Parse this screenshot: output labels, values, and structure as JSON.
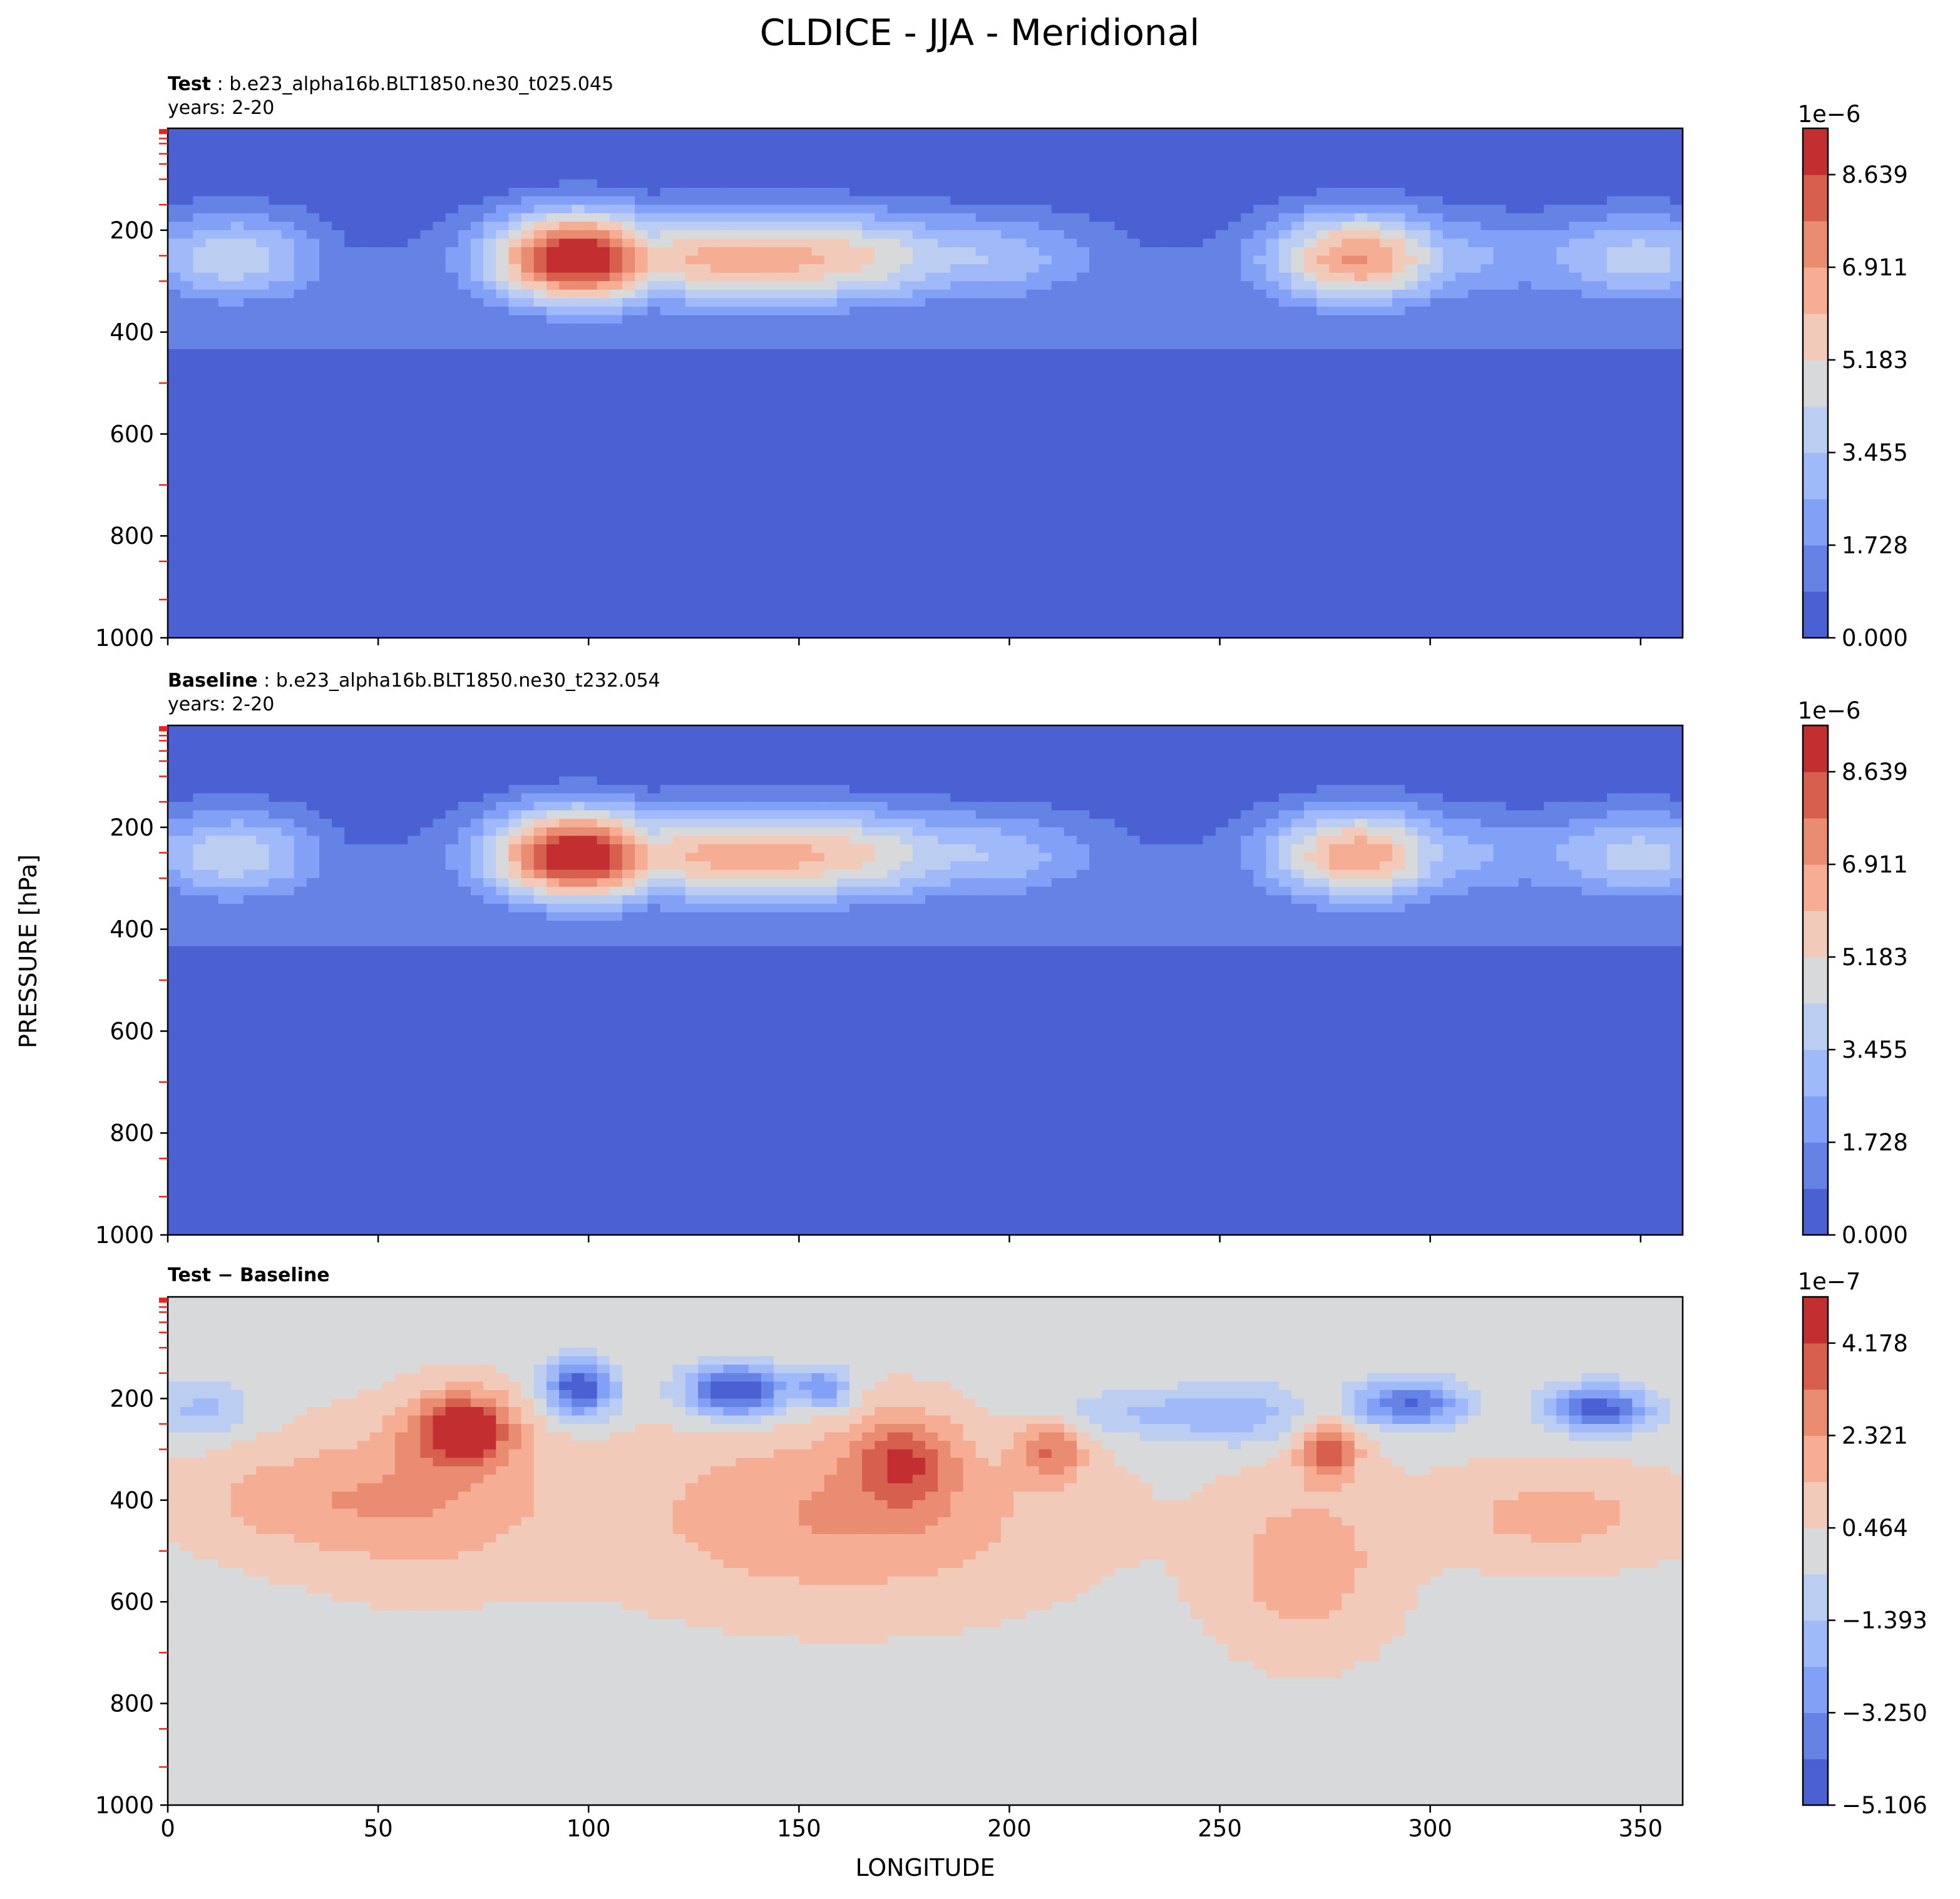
{
  "figure": {
    "title": "CLDICE - JJA - Meridional",
    "xlabel": "LONGITUDE",
    "ylabel": "PRESSURE [hPa]"
  },
  "colors": {
    "background": "#ffffff",
    "axis": "#000000",
    "tick_marker_red": "#e8211d"
  },
  "chart_data": [
    {
      "type": "heatmap",
      "name": "test",
      "title_bold": "Test",
      "title_rest": " : b.e23_alpha16b.BLT1850.ne30_t025.045",
      "years": "years: 2-20",
      "x": {
        "label": "",
        "range": [
          0,
          360
        ],
        "ticks": [
          0,
          50,
          100,
          150,
          200,
          250,
          300,
          350
        ],
        "tick_labels_visible": false
      },
      "y": {
        "label": "PRESSURE [hPa]",
        "range": [
          0,
          1000
        ],
        "inverted": true,
        "ticks": [
          200,
          400,
          600,
          800,
          1000
        ]
      },
      "colorbar": {
        "multiplier": "1e−6",
        "tick_labels": [
          "0.000",
          "1.728",
          "3.455",
          "5.183",
          "6.911",
          "8.639"
        ],
        "levels": 11,
        "colors": [
          "#4a60d3",
          "#6582e5",
          "#82a0f6",
          "#a0baf9",
          "#bccdf2",
          "#d8d9da",
          "#f2cab9",
          "#f5ae93",
          "#ea8c72",
          "#d6604d",
          "#c32e31"
        ]
      },
      "features": {
        "upper_band_pressure_hpa": [
          150,
          480
        ],
        "max_value_units": 9.3,
        "max_longitude_deg": 98,
        "max_pressure_hpa": 250,
        "secondary_max_longitude_deg": 283,
        "secondary_max_value_units": 6.5
      }
    },
    {
      "type": "heatmap",
      "name": "baseline",
      "title_bold": "Baseline",
      "title_rest": " : b.e23_alpha16b.BLT1850.ne30_t232.054",
      "years": "years: 2-20",
      "x": {
        "label": "",
        "range": [
          0,
          360
        ],
        "ticks": [
          0,
          50,
          100,
          150,
          200,
          250,
          300,
          350
        ],
        "tick_labels_visible": false
      },
      "y": {
        "label": "PRESSURE [hPa]",
        "range": [
          0,
          1000
        ],
        "inverted": true,
        "ticks": [
          200,
          400,
          600,
          800,
          1000
        ]
      },
      "colorbar": {
        "multiplier": "1e−6",
        "tick_labels": [
          "0.000",
          "1.728",
          "3.455",
          "5.183",
          "6.911",
          "8.639"
        ],
        "levels": 11,
        "colors": [
          "#4a60d3",
          "#6582e5",
          "#82a0f6",
          "#a0baf9",
          "#bccdf2",
          "#d8d9da",
          "#f2cab9",
          "#f5ae93",
          "#ea8c72",
          "#d6604d",
          "#c32e31"
        ]
      },
      "features": {
        "upper_band_pressure_hpa": [
          150,
          480
        ],
        "max_value_units": 9.3,
        "max_longitude_deg": 98,
        "max_pressure_hpa": 250,
        "secondary_max_longitude_deg": 283,
        "secondary_max_value_units": 6.2
      }
    },
    {
      "type": "heatmap",
      "name": "difference",
      "title_bold": "Test − Baseline",
      "title_rest": "",
      "years": "",
      "x": {
        "label": "LONGITUDE",
        "range": [
          0,
          360
        ],
        "ticks": [
          0,
          50,
          100,
          150,
          200,
          250,
          300,
          350
        ],
        "tick_labels_visible": true
      },
      "y": {
        "label": "PRESSURE [hPa]",
        "range": [
          0,
          1000
        ],
        "inverted": true,
        "ticks": [
          200,
          400,
          600,
          800,
          1000
        ]
      },
      "colorbar": {
        "multiplier": "1e−7",
        "tick_labels": [
          "−5.106",
          "−3.250",
          "−1.393",
          "0.464",
          "2.321",
          "4.178"
        ],
        "levels": 11,
        "colors": [
          "#4a60d3",
          "#6582e5",
          "#82a0f6",
          "#a0baf9",
          "#bccdf2",
          "#d8d9da",
          "#f2cab9",
          "#f5ae93",
          "#ea8c72",
          "#d6604d",
          "#c32e31"
        ]
      },
      "features": {
        "positive_max_longitude_deg": 70,
        "positive_max_pressure_hpa": 250,
        "negative_min_longitude_deg": 135,
        "negative_min_pressure_hpa": 200
      }
    }
  ]
}
